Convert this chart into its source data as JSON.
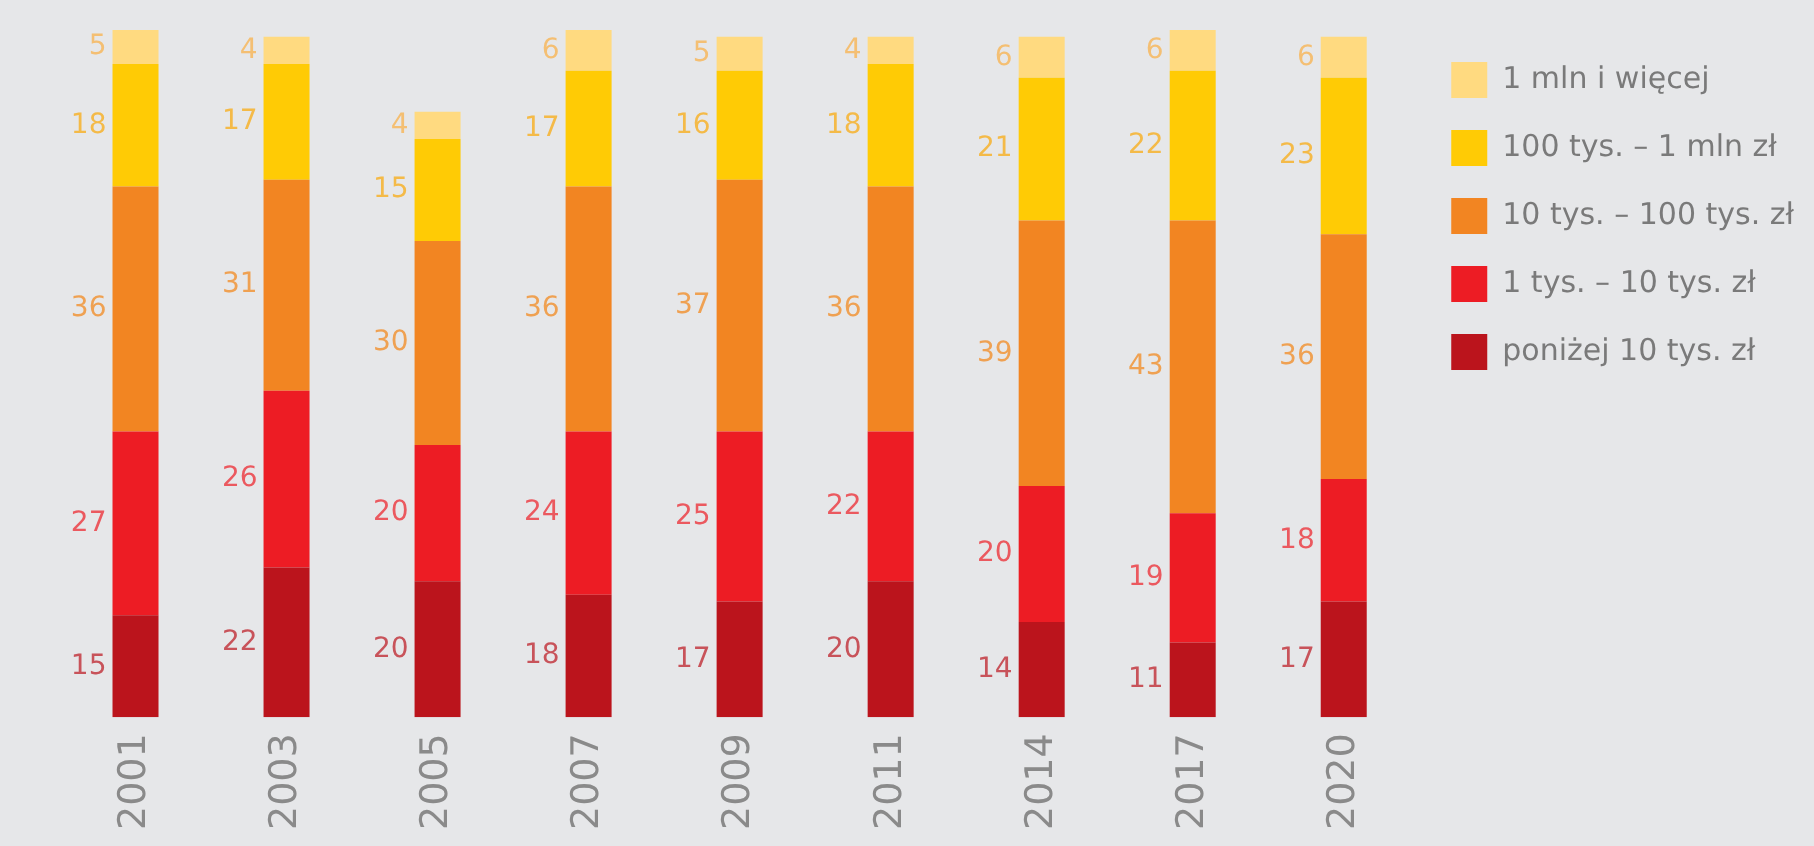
{
  "chart_data": {
    "type": "bar",
    "stacked": true,
    "data_labels": true,
    "legend": "top right",
    "grid": false,
    "categories": [
      "2001",
      "2003",
      "2005",
      "2007",
      "2009",
      "2011",
      "2014",
      "2017",
      "2020"
    ],
    "series": [
      {
        "name": "poniżej 10 tys. zł",
        "color": "#bb141c",
        "values": [
          15,
          22,
          20,
          18,
          17,
          20,
          14,
          11,
          17
        ]
      },
      {
        "name": "1 tys. – 10 tys. zł",
        "color": "#ed1c24",
        "values": [
          27,
          26,
          20,
          24,
          25,
          22,
          20,
          19,
          18
        ]
      },
      {
        "name": "10 tys. – 100 tys. zł",
        "color": "#f28522",
        "values": [
          36,
          31,
          30,
          36,
          37,
          36,
          39,
          43,
          36
        ]
      },
      {
        "name": "100 tys. – 1 mln zł",
        "color": "#ffcb05",
        "values": [
          18,
          17,
          15,
          17,
          16,
          18,
          21,
          22,
          23
        ]
      },
      {
        "name": "1 mln i więcej",
        "color": "#ffda80",
        "values": [
          5,
          4,
          4,
          6,
          5,
          4,
          6,
          6,
          6
        ]
      }
    ]
  }
}
